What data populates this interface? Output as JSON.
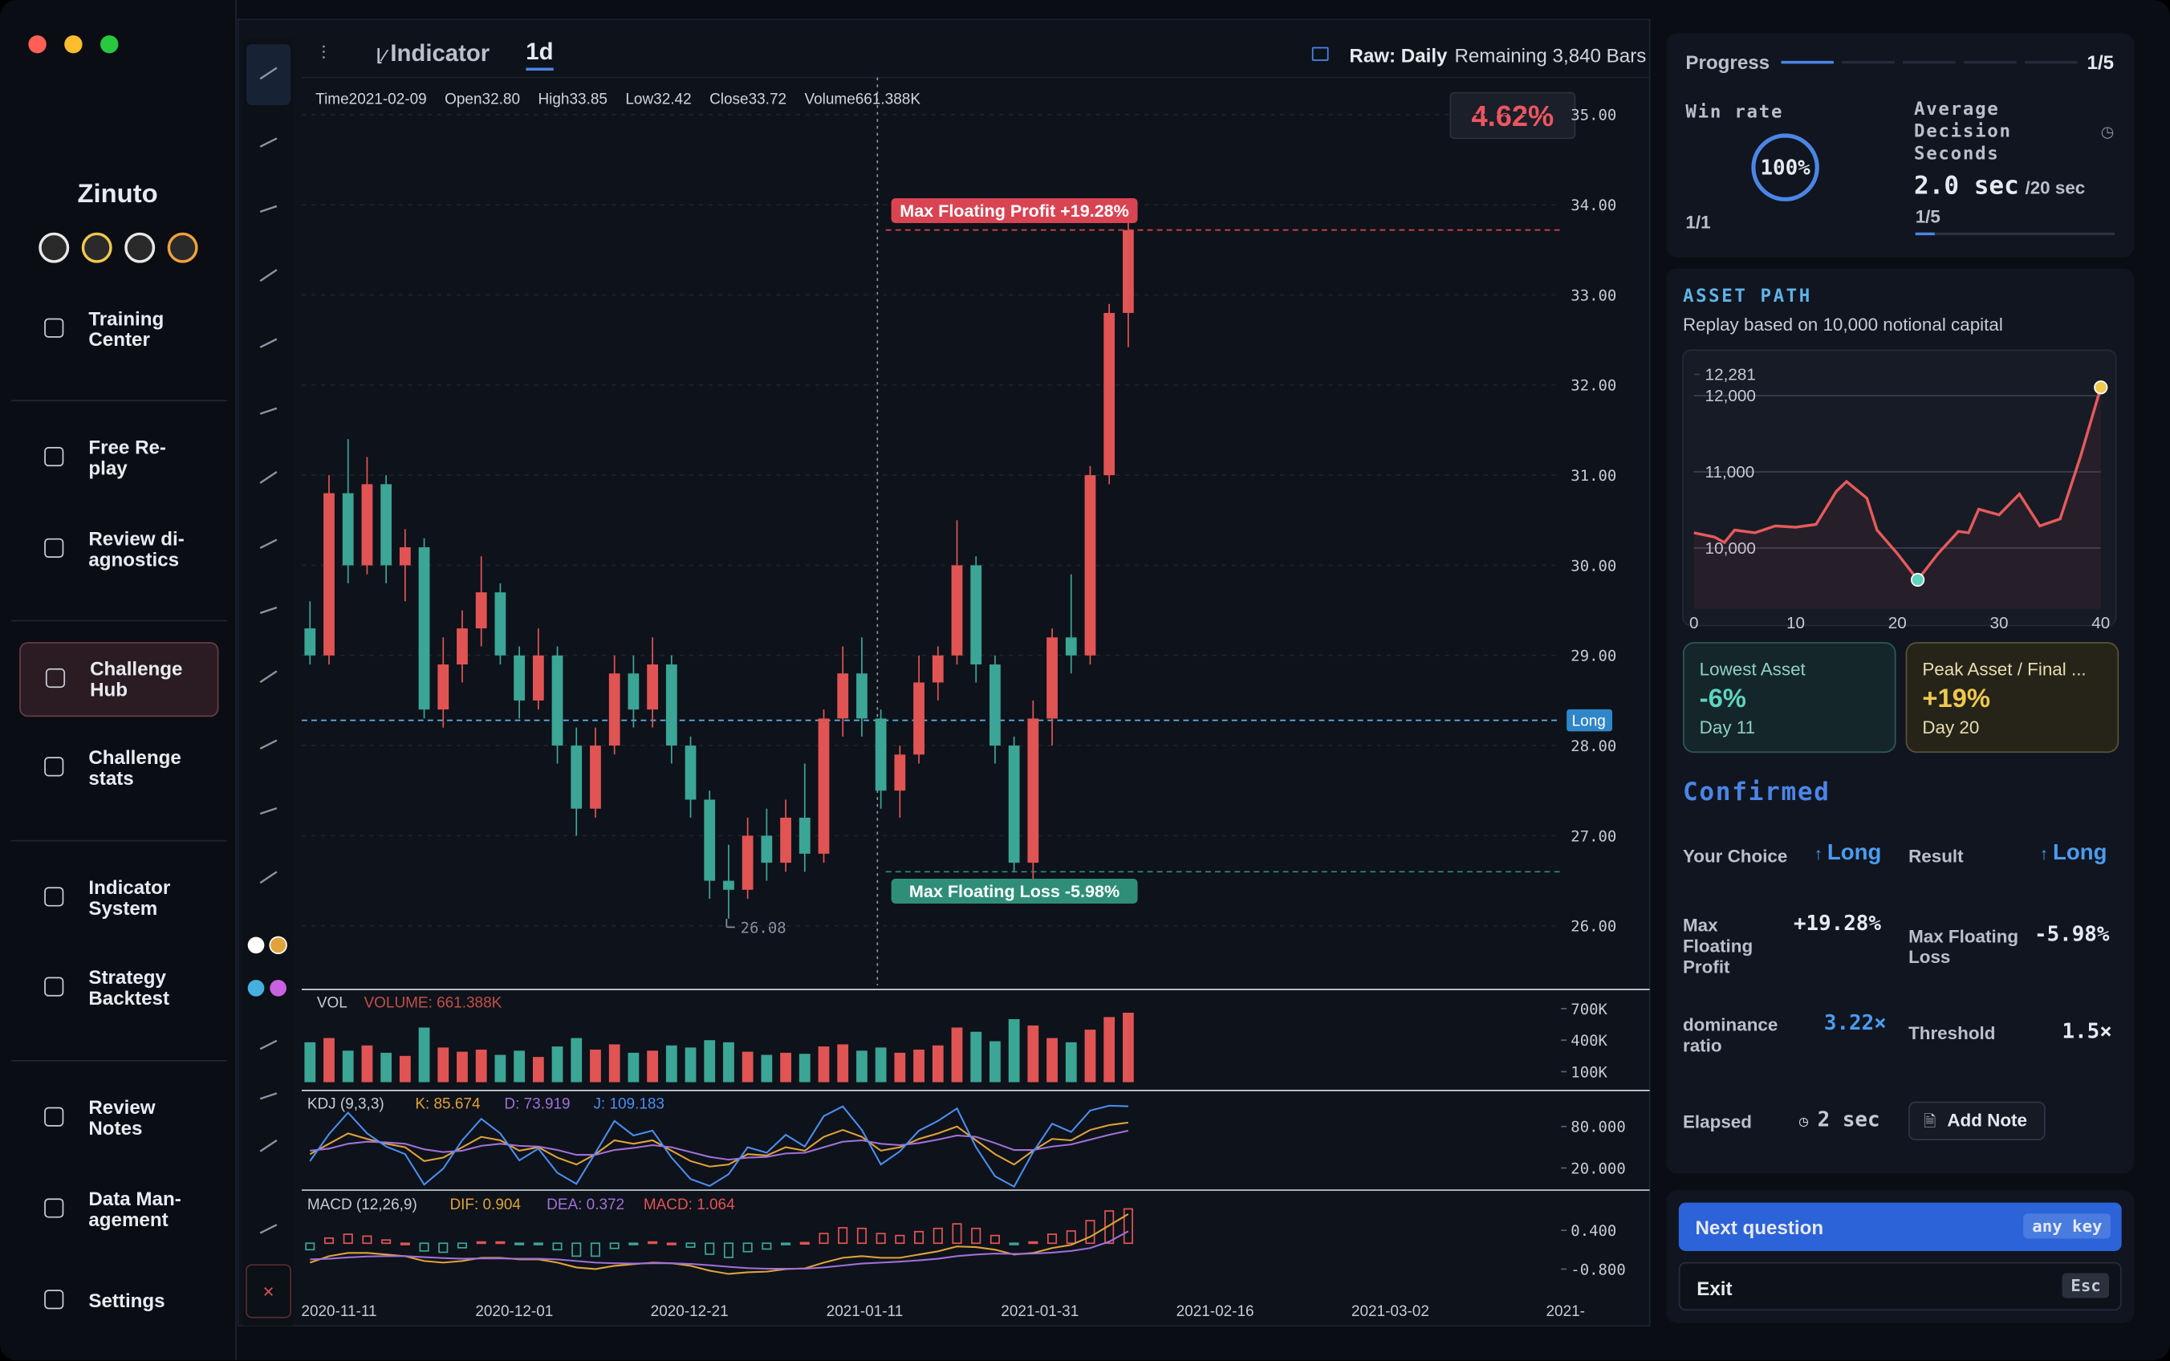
{
  "window": {
    "app_name": "Zinuto"
  },
  "sidebar": {
    "nav": [
      {
        "lines": [
          "Training",
          "Center"
        ]
      },
      {
        "lines": [
          "Free Re-",
          "play"
        ]
      },
      {
        "lines": [
          "Review di-",
          "agnostics"
        ]
      },
      {
        "lines": [
          "Challenge",
          "Hub"
        ]
      },
      {
        "lines": [
          "Challenge",
          "stats"
        ]
      },
      {
        "lines": [
          "Indicator",
          "System"
        ]
      },
      {
        "lines": [
          "Strategy",
          "Backtest"
        ]
      },
      {
        "lines": [
          "Review",
          "Notes"
        ]
      },
      {
        "lines": [
          "Data Man-",
          "agement"
        ]
      },
      {
        "lines": [
          "Settings"
        ]
      }
    ]
  },
  "toolbar": {
    "indicator": "Indicator",
    "interval": "1d",
    "mode": "Raw: Daily",
    "remaining": "Remaining 3,840 Bars"
  },
  "ohlc_bar": [
    {
      "label": "Time",
      "value": "2021-02-09"
    },
    {
      "label": "Open",
      "value": "32.80"
    },
    {
      "label": "High",
      "value": "33.85"
    },
    {
      "label": "Low",
      "value": "32.42"
    },
    {
      "label": "Close",
      "value": "33.72"
    },
    {
      "label": "Volume",
      "value": "661.388K"
    }
  ],
  "chart_overlay": {
    "change": "4.62%",
    "position_tag": "Long"
  },
  "x_axis_labels": [
    "2020-11-11",
    "2020-12-01",
    "2020-12-21",
    "2021-01-11",
    "2021-01-31",
    "2021-02-16",
    "2021-03-02",
    "2021-"
  ],
  "chart_data": [
    {
      "type": "candlestick",
      "open": [
        29.3,
        29.0,
        30.8,
        30.0,
        30.9,
        30.0,
        30.2,
        28.4,
        28.9,
        29.3,
        29.7,
        29.0,
        28.5,
        29.0,
        28.0,
        27.3,
        28.0,
        28.8,
        28.4,
        28.9,
        28.0,
        27.4,
        26.5,
        26.4,
        27.0,
        26.7,
        27.2,
        26.8,
        28.3,
        28.8,
        28.3,
        27.5,
        27.9,
        28.7,
        29.0,
        30.0,
        28.9,
        28.0,
        26.7,
        28.3,
        29.2,
        29.0,
        31.0,
        32.8
      ],
      "high": [
        29.6,
        31.0,
        31.4,
        31.2,
        31.0,
        30.4,
        30.3,
        29.2,
        29.5,
        30.1,
        29.8,
        29.1,
        29.3,
        29.1,
        28.2,
        28.2,
        29.0,
        29.0,
        29.2,
        29.0,
        28.1,
        27.5,
        26.9,
        27.2,
        27.3,
        27.4,
        27.8,
        28.4,
        29.1,
        29.2,
        28.4,
        28.0,
        29.0,
        29.1,
        30.5,
        30.1,
        29.0,
        28.1,
        28.5,
        29.3,
        29.9,
        31.1,
        32.9,
        33.85
      ],
      "low": [
        28.9,
        28.9,
        29.8,
        29.9,
        29.8,
        29.6,
        28.3,
        28.2,
        28.7,
        29.1,
        28.9,
        28.3,
        28.4,
        27.8,
        27.0,
        27.2,
        27.9,
        28.2,
        28.2,
        27.8,
        27.2,
        26.3,
        26.08,
        26.3,
        26.5,
        26.6,
        26.6,
        26.7,
        28.1,
        28.1,
        27.3,
        27.2,
        27.8,
        28.5,
        28.9,
        28.7,
        27.8,
        26.6,
        26.5,
        28.0,
        28.8,
        28.9,
        30.9,
        32.42
      ],
      "close": [
        29.0,
        30.8,
        30.0,
        30.9,
        30.0,
        30.2,
        28.4,
        28.9,
        29.3,
        29.7,
        29.0,
        28.5,
        29.0,
        28.0,
        27.3,
        28.0,
        28.8,
        28.4,
        28.9,
        28.0,
        27.4,
        26.5,
        26.4,
        27.0,
        26.7,
        27.2,
        26.8,
        28.3,
        28.8,
        28.3,
        27.5,
        27.9,
        28.7,
        29.0,
        30.0,
        28.9,
        28.0,
        26.7,
        28.3,
        29.2,
        29.0,
        31.0,
        32.8,
        33.72
      ],
      "up_color": "#e05454",
      "down_color": "#3ba596",
      "ylim": [
        25.34,
        35.32
      ],
      "yticks": [
        {
          "value": 26,
          "label": "26.00"
        },
        {
          "value": 27,
          "label": "27.00"
        },
        {
          "value": 28,
          "label": "28.00"
        },
        {
          "value": 29,
          "label": "29.00"
        },
        {
          "value": 30,
          "label": "30.00"
        },
        {
          "value": 31,
          "label": "31.00"
        },
        {
          "value": 32,
          "label": "32.00"
        },
        {
          "value": 33,
          "label": "33.00"
        },
        {
          "value": 34,
          "label": "34.00"
        },
        {
          "value": 35,
          "label": "35.00"
        }
      ],
      "grid": true,
      "annotations": [
        {
          "label": "Max Floating Profit +19.28%",
          "value": 33.72,
          "color": "#d94452"
        },
        {
          "label": "Max Floating Loss -5.98%",
          "value": 26.6,
          "color": "#2f8e78"
        }
      ],
      "entry": {
        "label": "Long",
        "value": 28.28,
        "color": "#5fb4e6"
      }
    },
    {
      "type": "bar",
      "title": "VOL",
      "subtitle": "VOLUME: 661.388K",
      "values": [
        380,
        420,
        300,
        350,
        280,
        250,
        520,
        330,
        290,
        310,
        260,
        300,
        240,
        340,
        420,
        310,
        360,
        280,
        300,
        350,
        330,
        400,
        380,
        290,
        260,
        280,
        270,
        340,
        360,
        300,
        330,
        280,
        310,
        350,
        520,
        480,
        390,
        600,
        540,
        420,
        380,
        500,
        620,
        661.388
      ],
      "ylim": [
        0,
        843
      ],
      "yticks": [
        {
          "value": 100,
          "label": "100K"
        },
        {
          "value": 400,
          "label": "400K"
        },
        {
          "value": 700,
          "label": "700K"
        }
      ]
    },
    {
      "type": "line",
      "title": "KDJ (9,3,3)",
      "series": [
        {
          "name": "K: 85.674",
          "color": "#e0a23a",
          "values": [
            40,
            55,
            70,
            62,
            55,
            50,
            30,
            35,
            50,
            65,
            60,
            45,
            50,
            35,
            25,
            40,
            60,
            55,
            60,
            45,
            30,
            22,
            25,
            40,
            38,
            50,
            45,
            65,
            75,
            65,
            45,
            50,
            62,
            70,
            80,
            60,
            40,
            25,
            45,
            62,
            60,
            75,
            82,
            85.674
          ]
        },
        {
          "name": "D: 73.919",
          "color": "#a070d8",
          "values": [
            45,
            48,
            55,
            58,
            57,
            55,
            47,
            43,
            45,
            52,
            55,
            52,
            51,
            46,
            39,
            39,
            46,
            49,
            53,
            50,
            43,
            36,
            32,
            35,
            36,
            41,
            42,
            50,
            58,
            60,
            55,
            53,
            56,
            61,
            67,
            65,
            56,
            46,
            46,
            51,
            54,
            61,
            68,
            73.919
          ]
        },
        {
          "name": "J: 109.183",
          "color": "#4a8ef0",
          "values": [
            30,
            69,
            100,
            70,
            51,
            40,
            -4,
            19,
            60,
            91,
            70,
            31,
            48,
            13,
            -3,
            42,
            88,
            67,
            74,
            35,
            4,
            -6,
            11,
            50,
            42,
            68,
            51,
            95,
            109,
            75,
            25,
            44,
            74,
            88,
            106,
            50,
            8,
            -7,
            43,
            84,
            72,
            103,
            110,
            109.183
          ]
        }
      ],
      "ylim": [
        -8,
        128
      ],
      "yticks": [
        {
          "value": 20,
          "label": "20.000"
        },
        {
          "value": 80,
          "label": "80.000"
        }
      ]
    },
    {
      "type": "macd",
      "title": "MACD (12,26,9)",
      "series": [
        {
          "name": "DIF: 0.904",
          "color": "#e0a23a",
          "values": [
            -0.6,
            -0.4,
            -0.3,
            -0.3,
            -0.35,
            -0.4,
            -0.55,
            -0.6,
            -0.55,
            -0.45,
            -0.45,
            -0.5,
            -0.5,
            -0.6,
            -0.75,
            -0.8,
            -0.7,
            -0.65,
            -0.6,
            -0.62,
            -0.7,
            -0.85,
            -0.95,
            -0.9,
            -0.88,
            -0.8,
            -0.78,
            -0.6,
            -0.45,
            -0.4,
            -0.45,
            -0.45,
            -0.35,
            -0.25,
            -0.1,
            -0.12,
            -0.2,
            -0.35,
            -0.3,
            -0.15,
            -0.05,
            0.2,
            0.55,
            0.904
          ]
        },
        {
          "name": "DEA: 0.372",
          "color": "#a070d8",
          "values": [
            -0.5,
            -0.48,
            -0.44,
            -0.41,
            -0.4,
            -0.4,
            -0.43,
            -0.46,
            -0.48,
            -0.47,
            -0.47,
            -0.48,
            -0.48,
            -0.5,
            -0.55,
            -0.6,
            -0.62,
            -0.63,
            -0.62,
            -0.62,
            -0.64,
            -0.68,
            -0.73,
            -0.77,
            -0.79,
            -0.79,
            -0.79,
            -0.75,
            -0.69,
            -0.63,
            -0.6,
            -0.57,
            -0.53,
            -0.48,
            -0.4,
            -0.35,
            -0.32,
            -0.33,
            -0.32,
            -0.29,
            -0.24,
            -0.15,
            0.05,
            0.372
          ]
        },
        {
          "name": "MACD: 1.064",
          "color": "#e05454",
          "values": [
            -0.2,
            0.16,
            0.28,
            0.22,
            0.1,
            0,
            -0.24,
            -0.28,
            -0.14,
            0.04,
            0.04,
            -0.04,
            -0.04,
            -0.2,
            -0.4,
            -0.4,
            -0.16,
            -0.04,
            0.04,
            0,
            -0.12,
            -0.34,
            -0.44,
            -0.26,
            -0.18,
            -0.02,
            0.02,
            0.3,
            0.48,
            0.46,
            0.3,
            0.24,
            0.36,
            0.46,
            0.6,
            0.46,
            0.24,
            -0.04,
            0.04,
            0.28,
            0.38,
            0.7,
            1.0,
            1.064
          ]
        }
      ],
      "hist_colors": [
        "#e05454",
        "#3ba596"
      ],
      "ylim": [
        -1.57,
        1.56
      ],
      "yticks": [
        {
          "value": -0.8,
          "label": "-0.800"
        },
        {
          "value": 0.4,
          "label": "0.400"
        }
      ]
    },
    {
      "type": "area",
      "title": "ASSET PATH",
      "subtitle": "Replay based on 10,000 notional capital",
      "x": [
        0,
        2,
        3,
        4,
        6,
        8,
        10,
        12,
        14,
        15,
        17,
        18,
        20,
        22,
        24,
        26,
        27,
        28,
        30,
        32,
        34,
        36,
        38,
        40
      ],
      "values": [
        10200,
        10145,
        10073,
        10236,
        10200,
        10290,
        10273,
        10310,
        10745,
        10873,
        10655,
        10236,
        9927,
        9582,
        9927,
        10218,
        10200,
        10509,
        10436,
        10709,
        10290,
        10382,
        11200,
        12110
      ],
      "color": "#e65a5a",
      "xlim": [
        0,
        40
      ],
      "xticks": [
        0,
        10,
        20,
        30,
        40
      ],
      "ylim": [
        9200,
        12436
      ],
      "yticks": [
        {
          "value": 10000,
          "label": "10,000"
        },
        {
          "value": 11000,
          "label": "11,000"
        },
        {
          "value": 12000,
          "label": "12,000"
        },
        {
          "value": 12281,
          "label": "12,281"
        }
      ]
    }
  ],
  "stats": {
    "progress_label": "Progress",
    "progress": "1/5",
    "win_rate_label": "Win rate",
    "win_rate": "100%",
    "win_count": "1/1",
    "avg_label": [
      "Average",
      "Decision",
      "Seconds"
    ],
    "avg_value": "2.0 sec",
    "avg_limit": "/20 sec",
    "avg_count": "1/5"
  },
  "summary": {
    "lowest_label": "Lowest Asset",
    "lowest_value": "-6%",
    "lowest_day": "Day 11",
    "peak_label": "Peak Asset / Final ...",
    "peak_value": "+19%",
    "peak_day": "Day 20"
  },
  "result": {
    "title": "Confirmed",
    "choice_label": "Your Choice",
    "choice": "Long",
    "result_label": "Result",
    "result": "Long",
    "mfp_label": "Max Floating Profit",
    "mfp": "+19.28%",
    "mfl_label": "Max Floating Loss",
    "mfl": "-5.98%",
    "dom_label": "dominance ratio",
    "dom": "3.22×",
    "thr_label": "Threshold",
    "thr": "1.5×",
    "elapsed_label": "Elapsed",
    "elapsed": "2 sec",
    "add_note": "Add Note"
  },
  "actions": {
    "next": "Next question",
    "next_key": "any key",
    "exit": "Exit",
    "exit_key": "Esc"
  }
}
